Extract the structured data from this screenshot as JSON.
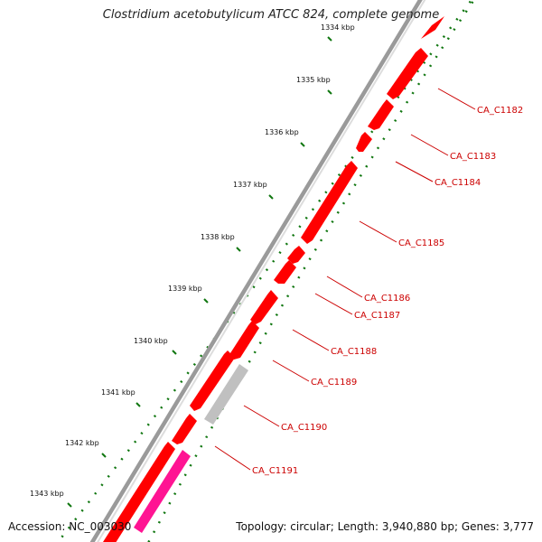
{
  "title": "Clostridium acetobutylicum ATCC 824, complete genome",
  "footer": {
    "accession_label": "Accession:",
    "accession": "NC_003030",
    "topology_label": "Topology:",
    "topology": "circular",
    "length_label": "Length:",
    "length": "3,940,880 bp",
    "genes_label": "Genes:",
    "genes": "3,777"
  },
  "colors": {
    "backbone": "#8a8a8a",
    "gene_red": "#ff0000",
    "gene_gray": "#c0c0c0",
    "gene_pink": "#ff1493",
    "tick_green": "#117711",
    "label_red": "#cc0000"
  },
  "scale_ticks": [
    "1334 kbp",
    "1335 kbp",
    "1336 kbp",
    "1337 kbp",
    "1338 kbp",
    "1339 kbp",
    "1340 kbp",
    "1341 kbp",
    "1342 kbp",
    "1343 kbp"
  ],
  "genes": [
    {
      "label": "CA_C1182",
      "color": "red"
    },
    {
      "label": "CA_C1183",
      "color": "red"
    },
    {
      "label": "CA_C1184",
      "color": "red"
    },
    {
      "label": "CA_C1185",
      "color": "red"
    },
    {
      "label": "CA_C1186",
      "color": "red"
    },
    {
      "label": "CA_C1187",
      "color": "red"
    },
    {
      "label": "CA_C1188",
      "color": "red"
    },
    {
      "label": "CA_C1189",
      "color": "red"
    },
    {
      "label": "CA_C1190",
      "color": "gray"
    },
    {
      "label": "CA_C1191",
      "color": "red"
    }
  ],
  "extra_features": [
    {
      "color": "pink"
    }
  ]
}
